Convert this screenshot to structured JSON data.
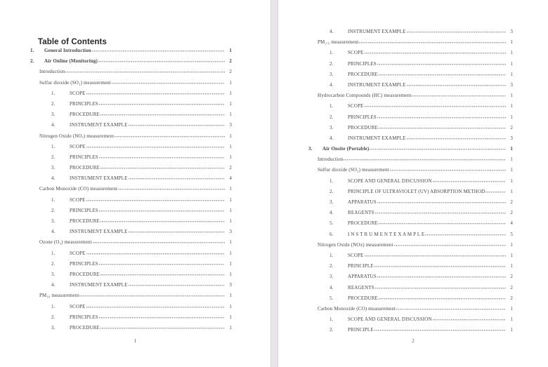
{
  "colors": {
    "page_background": "#ffffff",
    "canvas_gap": "#e9e4e9",
    "text": "#454545",
    "heading_text": "#262626"
  },
  "toc": {
    "heading": "Table of Contents",
    "pages": [
      {
        "footer_page_number": "1",
        "entries": [
          {
            "level": 1,
            "num": "1.",
            "label": "General Introduction",
            "page": "1"
          },
          {
            "level": 1,
            "num": "2.",
            "label": "Air Online (Monitoring)",
            "page": "2"
          },
          {
            "level": 2,
            "num": "",
            "label": "Introduction",
            "page": "2"
          },
          {
            "level": 2,
            "num": "",
            "label": "Sulfur dioxide (SO₂) measurement",
            "page": "1"
          },
          {
            "level": 3,
            "num": "1.",
            "label": "SCOPE",
            "page": "1"
          },
          {
            "level": 3,
            "num": "2.",
            "label": "PRINCIPLES",
            "page": "1"
          },
          {
            "level": 3,
            "num": "3.",
            "label": "PROCEDURE",
            "page": "1"
          },
          {
            "level": 3,
            "num": "4.",
            "label": "INSTRUMENT EXAMPLE",
            "page": "3"
          },
          {
            "level": 2,
            "num": "",
            "label": "Nitrogen Oxide (NOₓ) measurement",
            "page": "1"
          },
          {
            "level": 3,
            "num": "1.",
            "label": "SCOPE",
            "page": "1"
          },
          {
            "level": 3,
            "num": "2.",
            "label": "PRINCIPLES",
            "page": "1"
          },
          {
            "level": 3,
            "num": "3.",
            "label": "PROCEDURE",
            "page": "2"
          },
          {
            "level": 3,
            "num": "4.",
            "label": "INSTRUMENT EXAMPLE",
            "page": "4"
          },
          {
            "level": 2,
            "num": "",
            "label": "Carbon Monoxide (CO) measurement",
            "page": "1"
          },
          {
            "level": 3,
            "num": "1.",
            "label": "SCOPE",
            "page": "1"
          },
          {
            "level": 3,
            "num": "2.",
            "label": "PRINCIPLES",
            "page": "1"
          },
          {
            "level": 3,
            "num": "3.",
            "label": "PROCEDURE",
            "page": "1"
          },
          {
            "level": 3,
            "num": "4.",
            "label": "INSTRUMENT EXAMPLE",
            "page": "3"
          },
          {
            "level": 2,
            "num": "",
            "label": "Ozone (O₃) measurement",
            "page": "1"
          },
          {
            "level": 3,
            "num": "1.",
            "label": "SCOPE",
            "page": "1"
          },
          {
            "level": 3,
            "num": "2.",
            "label": "PRINCIPLES",
            "page": "1"
          },
          {
            "level": 3,
            "num": "3.",
            "label": "PROCEDURE",
            "page": "1"
          },
          {
            "level": 3,
            "num": "4.",
            "label": "INSTRUMENT EXAMPLE",
            "page": "3"
          },
          {
            "level": 2,
            "num": "",
            "label": "PM₁₀ measurement",
            "page": "1"
          },
          {
            "level": 3,
            "num": "1.",
            "label": "SCOPE",
            "page": "1"
          },
          {
            "level": 3,
            "num": "2.",
            "label": "PRINCIPLES",
            "page": "1"
          },
          {
            "level": 3,
            "num": "3.",
            "label": "PROCEDURE",
            "page": "1"
          }
        ]
      },
      {
        "footer_page_number": "2",
        "entries": [
          {
            "level": 3,
            "num": "4.",
            "label": "INSTRUMENT EXAMPLE",
            "page": "3"
          },
          {
            "level": 2,
            "num": "",
            "label": "PM₂.₅ measurement",
            "page": "1"
          },
          {
            "level": 3,
            "num": "1.",
            "label": "SCOPE",
            "page": "1"
          },
          {
            "level": 3,
            "num": "2.",
            "label": "PRINCIPLES",
            "page": "1"
          },
          {
            "level": 3,
            "num": "3.",
            "label": "PROCEDURE",
            "page": "1"
          },
          {
            "level": 3,
            "num": "4.",
            "label": "INSTRUMENT EXAMPLE",
            "page": "3"
          },
          {
            "level": 2,
            "num": "",
            "label": "Hydrocarbon Compounds (HC) measurement",
            "page": "1"
          },
          {
            "level": 3,
            "num": "1.",
            "label": "SCOPE",
            "page": "1"
          },
          {
            "level": 3,
            "num": "2.",
            "label": "PRINCIPLES",
            "page": "1"
          },
          {
            "level": 3,
            "num": "3.",
            "label": "PROCEDURE",
            "page": "2"
          },
          {
            "level": 3,
            "num": "4.",
            "label": "INSTRUMENT EXAMPLE",
            "page": "3"
          },
          {
            "level": 1,
            "num": "3.",
            "label": "Air Onsite (Portable)",
            "page": "1"
          },
          {
            "level": 2,
            "num": "",
            "label": "Introduction",
            "page": "1"
          },
          {
            "level": 2,
            "num": "",
            "label": "Sulfur dioxide (SO₂) measurement",
            "page": "1"
          },
          {
            "level": 3,
            "num": "1.",
            "label": "SCOPE AND GENERAL DISCUSSION",
            "page": "1"
          },
          {
            "level": 3,
            "num": "2.",
            "label": "PRINCIPLE OF ULTRAVIOLET (UV) ABSORPTION METHOD",
            "page": "1"
          },
          {
            "level": 3,
            "num": "3.",
            "label": "APPARATUS",
            "page": "2"
          },
          {
            "level": 3,
            "num": "4.",
            "label": "REAGENTS",
            "page": "2"
          },
          {
            "level": 3,
            "num": "5.",
            "label": "PROCEDURE",
            "page": "4"
          },
          {
            "level": 3,
            "num": "6.",
            "label": "I N S T R U M E N T   E X A M P L E",
            "page": "5"
          },
          {
            "level": 2,
            "num": "",
            "label": "Nitrogen Oxide (NOx) measurement",
            "page": "1"
          },
          {
            "level": 3,
            "num": "1.",
            "label": "SCOPE",
            "page": "1"
          },
          {
            "level": 3,
            "num": "2.",
            "label": "PRINCIPLE",
            "page": "1"
          },
          {
            "level": 3,
            "num": "3.",
            "label": "APPARATUS",
            "page": "2"
          },
          {
            "level": 3,
            "num": "4.",
            "label": "REAGENTS",
            "page": "2"
          },
          {
            "level": 3,
            "num": "5.",
            "label": "PROCEDURE",
            "page": "2"
          },
          {
            "level": 2,
            "num": "",
            "label": "Carbon Monoxide (CO) measurement",
            "page": "1"
          },
          {
            "level": 3,
            "num": "1.",
            "label": "SCOPE AND GENERAL DISCUSSION",
            "page": "1"
          },
          {
            "level": 3,
            "num": "2.",
            "label": "PRINCIPLE",
            "page": "1"
          }
        ]
      }
    ]
  }
}
